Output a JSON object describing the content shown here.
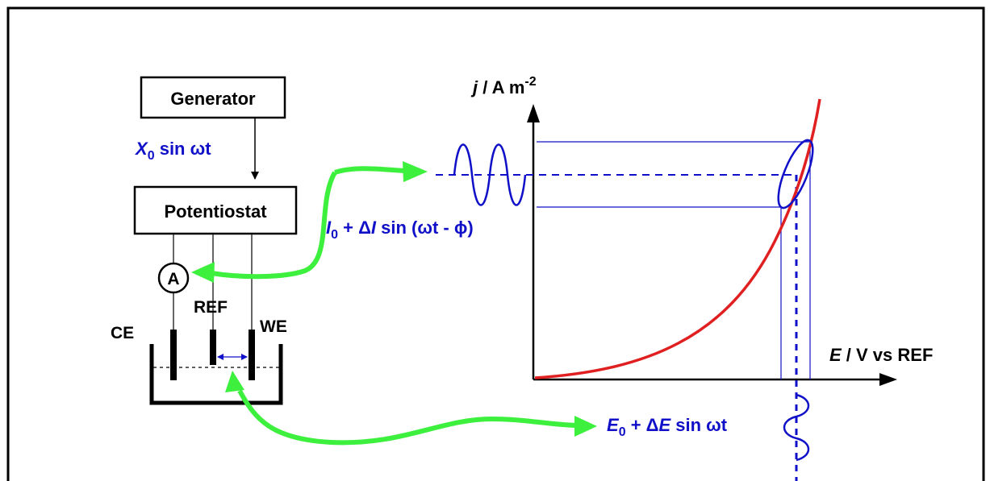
{
  "colors": {
    "frame": "#000000",
    "ink": "#000000",
    "blue": "#1010c8",
    "curve": "#e02020",
    "arrow_green": "#3df03d"
  },
  "labels": {
    "generator": "Generator",
    "potentiostat": "Potentiostat",
    "input_signal": {
      "var": "X",
      "sub": "0",
      "rest": " sin ωt"
    },
    "ammeter": "A",
    "ce": "CE",
    "ref": "REF",
    "we": "WE",
    "y_axis": {
      "var": "j",
      "mid": "  / A m",
      "sup": "-2"
    },
    "x_axis": {
      "var": "E",
      "rest": " / V vs REF"
    },
    "current_response": {
      "var": "I",
      "sub": "0",
      "mid": " + Δ",
      "var2": "I",
      "rest": " sin (ωt - ϕ)"
    },
    "potential_perturbation": {
      "var": "E",
      "sub": "0",
      "mid": " + Δ",
      "var2": "E",
      "rest": " sin ωt"
    }
  },
  "icons": [
    "ammeter-icon",
    "sine-wave-icon",
    "double-arrow-icon"
  ]
}
